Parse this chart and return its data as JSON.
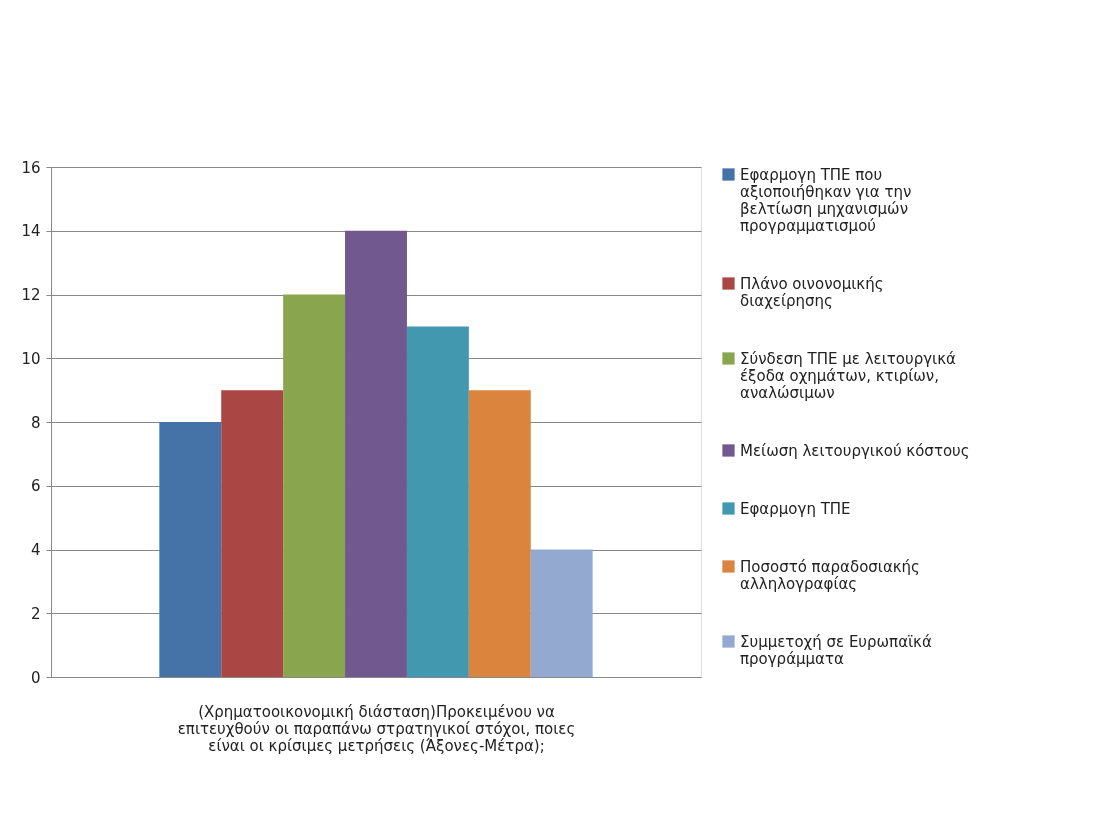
{
  "chart_data": {
    "type": "bar",
    "categories": [
      null
    ],
    "xlabel": "(Χρηματοοικονομική διάσταση)Προκειμένου να επιτευχθούν οι παραπάνω στρατηγικοί στόχοι, ποιες είναι οι κρίσιμες μετρήσεις (Άξονες-Μέτρα);",
    "series": [
      {
        "name": "Εφαρμογη ΤΠΕ που αξιοποιήθηκαν για την βελτίωση μηχανισμών προγραμματισμού",
        "color": "#4572a7",
        "values": [
          8
        ]
      },
      {
        "name": "Πλάνο οινονομικής διαχείρησης",
        "color": "#aa4643",
        "values": [
          9
        ]
      },
      {
        "name": "Σύνδεση ΤΠΕ με λειτουργικά έξοδα οχημάτων, κτιρίων, αναλώσιμων",
        "color": "#89a54e",
        "values": [
          12
        ]
      },
      {
        "name": "Μείωση λειτουργικού κόστους",
        "color": "#71588f",
        "values": [
          14
        ]
      },
      {
        "name": "Εφαρμογη ΤΠΕ",
        "color": "#4198af",
        "values": [
          11
        ]
      },
      {
        "name": "Ποσοστό παραδοσιακής αλληλογραφίας",
        "color": "#db843d",
        "values": [
          9
        ]
      },
      {
        "name": "Συμμετοχή σε Ευρωπαϊκά προγράμματα",
        "color": "#93a9cf",
        "values": [
          4
        ]
      }
    ],
    "ylim": [
      0,
      16
    ],
    "yticks": [
      0,
      2,
      4,
      6,
      8,
      10,
      12,
      14,
      16
    ],
    "grid": "y",
    "legend": "right"
  }
}
